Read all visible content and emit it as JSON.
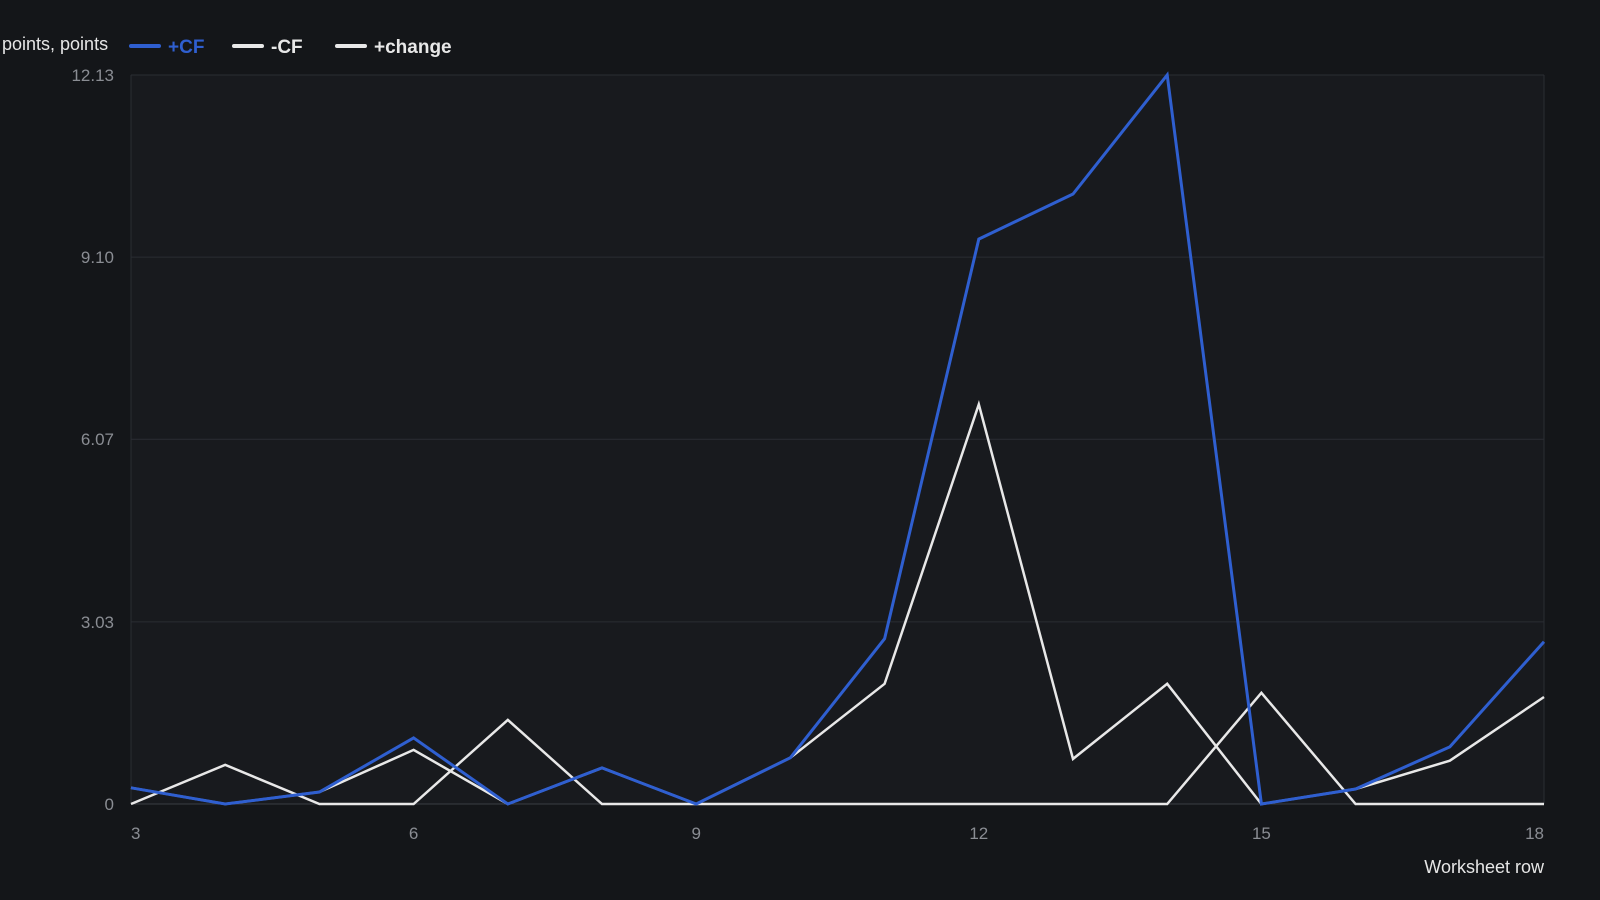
{
  "chart_data": {
    "type": "line",
    "unit_label": "points, points",
    "xlabel": "Worksheet row",
    "ylabel": "",
    "x": [
      3,
      4,
      5,
      6,
      7,
      8,
      9,
      10,
      11,
      12,
      13,
      14,
      15,
      16,
      17,
      18
    ],
    "xlim": [
      3,
      18
    ],
    "ylim": [
      0,
      12.13
    ],
    "x_ticks": [
      "3",
      "6",
      "9",
      "12",
      "15",
      "18"
    ],
    "x_tick_values": [
      3,
      6,
      9,
      12,
      15,
      18
    ],
    "y_ticks": [
      "0",
      "3.03",
      "6.07",
      "9.10",
      "12.13"
    ],
    "y_tick_values": [
      0,
      3.03,
      6.07,
      9.1,
      12.13
    ],
    "grid": true,
    "legend_position": "top-left",
    "series": [
      {
        "name": "+CF",
        "color": "#2f5fd0",
        "values": [
          0.27,
          0,
          0.2,
          1.1,
          0,
          0.6,
          0,
          0.77,
          2.75,
          9.4,
          10.15,
          12.13,
          0,
          0.25,
          0.95,
          2.7
        ]
      },
      {
        "name": "-CF",
        "color": "#e8e8e8",
        "values": [
          0,
          0.65,
          0,
          0,
          1.4,
          0,
          0,
          0,
          0,
          0,
          0,
          0,
          1.85,
          0,
          0,
          0
        ]
      },
      {
        "name": "+change",
        "color": "#e8e8e8",
        "values": [
          0.27,
          0,
          0.2,
          0.9,
          0,
          0.6,
          0,
          0.77,
          2.0,
          6.65,
          0.75,
          2.0,
          0,
          0.25,
          0.72,
          1.78
        ]
      }
    ]
  }
}
